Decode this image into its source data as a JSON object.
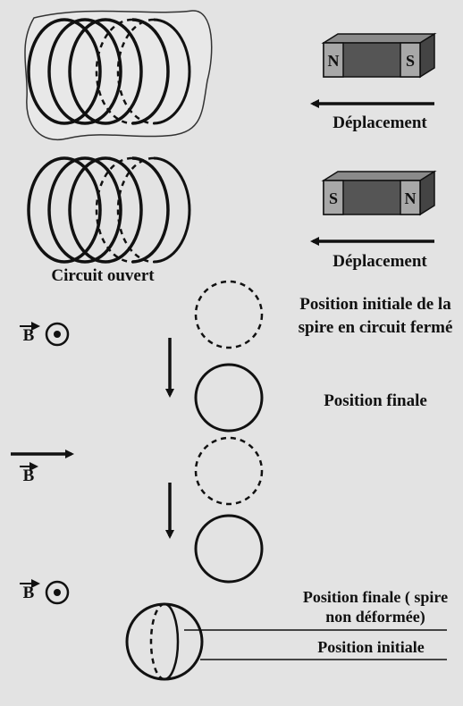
{
  "panel1": {
    "magnet": {
      "left_pole": "N",
      "right_pole": "S"
    },
    "arrow_label": "Déplacement"
  },
  "panel2": {
    "magnet": {
      "left_pole": "S",
      "right_pole": "N"
    },
    "arrow_label": "Déplacement",
    "circuit_label": "Circuit ouvert"
  },
  "panel3": {
    "field_symbol": "B",
    "initial_label": "Position initiale de la spire en circuit fermé",
    "final_label": "Position finale"
  },
  "panel4": {
    "field_symbol": "B"
  },
  "panel5": {
    "field_symbol": "B",
    "final_label": "Position finale ( spire non déformée)",
    "initial_label": "Position initiale"
  },
  "colors": {
    "ink": "#111111",
    "magnet_dark": "#555555",
    "magnet_pole": "#a8a8a8",
    "background": "#e3e3e3"
  }
}
